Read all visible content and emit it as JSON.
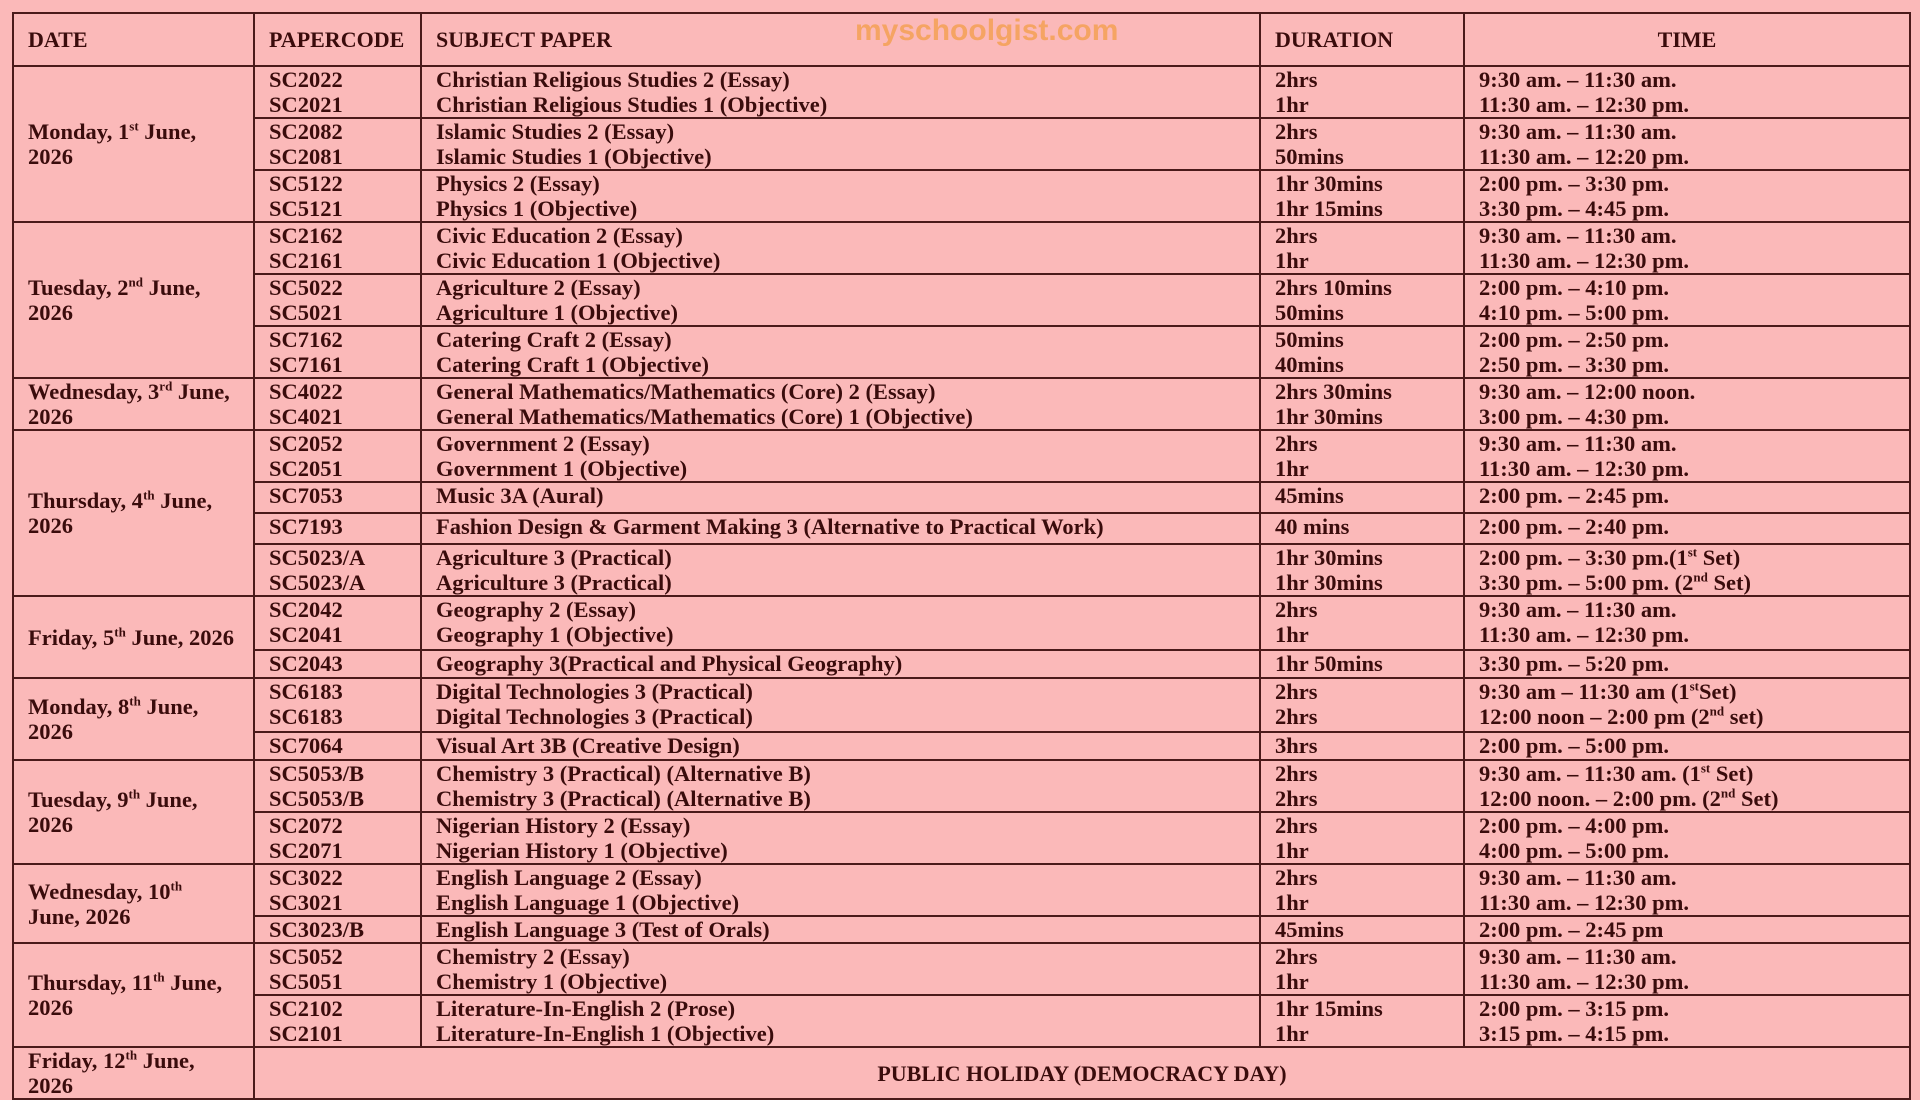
{
  "watermark": "myschoolgist.com",
  "headers": {
    "date": "DATE",
    "code_1": "PAPER",
    "code_2": "CODE",
    "subject": "SUBJECT PAPER",
    "duration": "DURATION",
    "time": "TIME"
  },
  "days": [
    {
      "date": "Monday, 1",
      "sup": "st",
      "date2": " June, 2026",
      "blocks": [
        {
          "h": 51,
          "rows": [
            [
              "SC2022",
              "Christian Religious Studies 2 (Essay)",
              "2hrs",
              "9:30 am. – 11:30 am."
            ],
            [
              "SC2021",
              "Christian Religious Studies 1 (Objective)",
              "1hr",
              "11:30 am. – 12:30 pm."
            ]
          ]
        },
        {
          "h": 49,
          "rows": [
            [
              "SC2082",
              "Islamic Studies 2 (Essay)",
              "2hrs",
              "9:30 am. – 11:30 am."
            ],
            [
              "SC2081",
              "Islamic Studies 1 (Objective)",
              "50mins",
              "11:30 am. – 12:20 pm."
            ]
          ]
        },
        {
          "h": 50,
          "rows": [
            [
              "SC5122",
              "Physics 2 (Essay)",
              "1hr 30mins",
              "2:00 pm. – 3:30 pm."
            ],
            [
              "SC5121",
              "Physics 1 (Objective)",
              "1hr 15mins",
              "3:30 pm. – 4:45 pm."
            ]
          ]
        }
      ]
    },
    {
      "date": "Tuesday, 2",
      "sup": "nd",
      "date2": " June, 2026",
      "blocks": [
        {
          "h": 50,
          "rows": [
            [
              "SC2162",
              "Civic Education 2 (Essay)",
              "2hrs",
              "9:30 am. – 11:30 am."
            ],
            [
              "SC2161",
              "Civic Education 1 (Objective)",
              "1hr",
              "11:30 am. – 12:30 pm."
            ]
          ]
        },
        {
          "h": 50,
          "rows": [
            [
              "SC5022",
              "Agriculture 2 (Essay)",
              "2hrs 10mins",
              "2:00 pm. – 4:10 pm."
            ],
            [
              "SC5021",
              "Agriculture 1 (Objective)",
              "50mins",
              "4:10 pm. – 5:00 pm."
            ]
          ]
        },
        {
          "h": 51,
          "rows": [
            [
              "SC7162",
              "Catering Craft 2 (Essay)",
              "50mins",
              "2:00 pm. – 2:50 pm."
            ],
            [
              "SC7161",
              "Catering Craft 1 (Objective)",
              "40mins",
              "2:50 pm. – 3:30 pm."
            ]
          ]
        }
      ]
    },
    {
      "date": "Wednesday, 3",
      "sup": "rd",
      "date2": " June, 2026",
      "blocks": [
        {
          "h": 51,
          "rows": [
            [
              "SC4022",
              "General Mathematics/Mathematics (Core) 2 (Essay)",
              "2hrs 30mins",
              "9:30 am. – 12:00 noon."
            ],
            [
              "SC4021",
              "General Mathematics/Mathematics (Core) 1 (Objective)",
              "1hr 30mins",
              "3:00 pm. – 4:30 pm."
            ]
          ]
        }
      ]
    },
    {
      "date": "Thursday, 4",
      "sup": "th",
      "date2": " June, 2026",
      "blocks": [
        {
          "h": 50,
          "rows": [
            [
              "SC2052",
              "Government 2 (Essay)",
              "2hrs",
              "9:30 am. – 11:30 am."
            ],
            [
              "SC2051",
              "Government 1 (Objective)",
              "1hr",
              "11:30 am. – 12:30 pm."
            ]
          ]
        },
        {
          "h": 31,
          "rows": [
            [
              "SC7053",
              "Music 3A (Aural)",
              "45mins",
              "2:00 pm. – 2:45 pm."
            ]
          ]
        },
        {
          "h": 31,
          "rows": [
            [
              "SC7193",
              "Fashion Design & Garment Making 3 (Alternative to Practical Work)",
              "40 mins",
              "2:00 pm. – 2:40 pm."
            ]
          ]
        },
        {
          "h": 50,
          "rows": [
            [
              "SC5023/A",
              "Agriculture 3 (Practical)",
              "1hr 30mins",
              "2:00 pm. – 3:30 pm.(1st Set)"
            ],
            [
              "SC5023/A",
              "Agriculture 3 (Practical)",
              "1hr 30mins",
              "3:30 pm. – 5:00 pm. (2nd Set)"
            ]
          ]
        }
      ]
    },
    {
      "date": "Friday, 5",
      "sup": "th",
      "date2": " June, 2026",
      "blocks": [
        {
          "h": 54,
          "rows": [
            [
              "SC2042",
              "Geography 2 (Essay)",
              "2hrs",
              "9:30 am. – 11:30 am."
            ],
            [
              "SC2041",
              "Geography 1 (Objective)",
              "1hr",
              "11:30 am. – 12:30 pm."
            ]
          ]
        },
        {
          "h": 28,
          "rows": [
            [
              "SC2043",
              "Geography 3(Practical and Physical Geography)",
              "1hr 50mins",
              "3:30 pm. – 5:20 pm."
            ]
          ]
        }
      ]
    },
    {
      "date": "Monday, 8",
      "sup": "th",
      "date2": " June, 2026",
      "blocks": [
        {
          "h": 54,
          "rows": [
            [
              "SC6183",
              "Digital Technologies 3 (Practical)",
              "2hrs",
              "9:30 am – 11:30 am (1stSet)"
            ],
            [
              "SC6183",
              "Digital Technologies 3 (Practical)",
              "2hrs",
              "12:00 noon – 2:00 pm (2nd set)"
            ]
          ]
        },
        {
          "h": 28,
          "rows": [
            [
              "SC7064",
              "Visual Art 3B (Creative Design)",
              "3hrs",
              "2:00 pm. – 5:00 pm."
            ]
          ]
        }
      ]
    },
    {
      "date": "Tuesday, 9",
      "sup": "th",
      "date2": " June, 2026",
      "blocks": [
        {
          "h": 51,
          "rows": [
            [
              "SC5053/B",
              "Chemistry 3 (Practical) (Alternative B)",
              "2hrs",
              "9:30 am. – 11:30 am. (1st Set)"
            ],
            [
              "SC5053/B",
              "Chemistry 3 (Practical) (Alternative B)",
              "2hrs",
              "12:00 noon. – 2:00 pm. (2nd Set)"
            ]
          ]
        },
        {
          "h": 50,
          "rows": [
            [
              "SC2072",
              "Nigerian History 2 (Essay)",
              "2hrs",
              "2:00 pm. – 4:00 pm."
            ],
            [
              "SC2071",
              "Nigerian History 1 (Objective)",
              "1hr",
              "4:00 pm. – 5:00 pm."
            ]
          ]
        }
      ]
    },
    {
      "date": "Wednesday, 10",
      "sup": "th",
      "date2": " June, 2026",
      "blocks": [
        {
          "h": 50,
          "rows": [
            [
              "SC3022",
              "English Language 2 (Essay)",
              "2hrs",
              "9:30 am. – 11:30 am."
            ],
            [
              "SC3021",
              "English Language 1 (Objective)",
              "1hr",
              "11:30 am. – 12:30 pm."
            ]
          ]
        },
        {
          "h": 26,
          "rows": [
            [
              "SC3023/B",
              "English Language 3 (Test of Orals)",
              "45mins",
              "2:00 pm. – 2:45 pm"
            ]
          ]
        }
      ]
    },
    {
      "date": "Thursday, 11",
      "sup": "th",
      "date2": " June, 2026",
      "blocks": [
        {
          "h": 51,
          "rows": [
            [
              "SC5052",
              "Chemistry 2 (Essay)",
              "2hrs",
              "9:30 am. – 11:30 am."
            ],
            [
              "SC5051",
              "Chemistry 1 (Objective)",
              "1hr",
              "11:30 am. – 12:30 pm."
            ]
          ]
        },
        {
          "h": 50,
          "rows": [
            [
              "SC2102",
              "Literature-In-English 2 (Prose)",
              "1hr 15mins",
              "2:00 pm. – 3:15 pm."
            ],
            [
              "SC2101",
              "Literature-In-English 1 (Objective)",
              "1hr",
              "3:15 pm. – 4:15 pm."
            ]
          ]
        }
      ]
    }
  ],
  "holiday": {
    "date": "Friday, 12",
    "sup": "th",
    "date2": " June, 2026",
    "label": "PUBLIC HOLIDAY (DEMOCRACY DAY)"
  }
}
